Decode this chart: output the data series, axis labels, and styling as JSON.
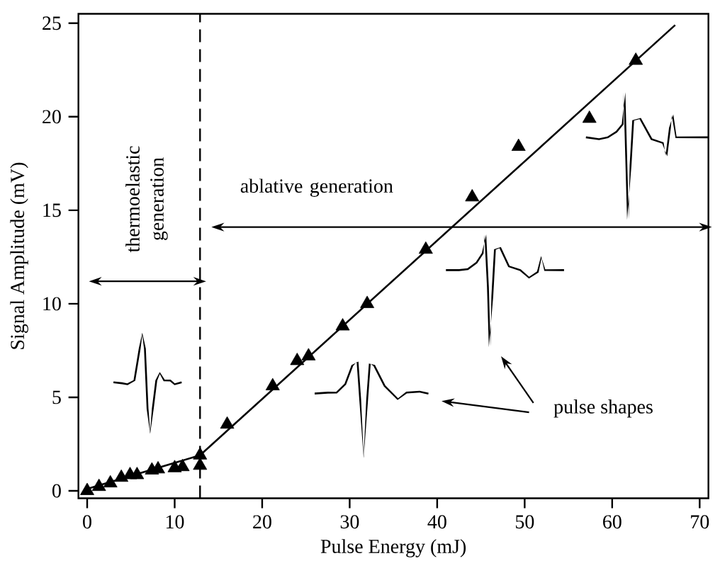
{
  "chart_data": {
    "type": "scatter",
    "xlabel": "Pulse Energy (mJ)",
    "ylabel": "Signal Amplitude (mV)",
    "xlim": [
      -1,
      71
    ],
    "ylim": [
      -0.4,
      25.5
    ],
    "xticks": [
      0,
      10,
      20,
      30,
      40,
      50,
      60,
      70
    ],
    "yticks": [
      0,
      5,
      10,
      15,
      20,
      25
    ],
    "series": [
      {
        "marker": "triangle",
        "color": "#000000",
        "x": [
          0,
          1.35,
          2.65,
          3.9,
          4.9,
          5.7,
          7.4,
          8.1,
          10.0,
          10.9,
          12.9,
          12.9,
          16.0,
          21.2,
          24.0,
          25.3,
          29.2,
          32.0,
          38.7,
          44.0,
          49.3,
          57.4,
          62.7
        ],
        "values": [
          0,
          0.22,
          0.41,
          0.71,
          0.85,
          0.85,
          1.1,
          1.16,
          1.22,
          1.28,
          1.9,
          1.35,
          3.55,
          5.6,
          6.95,
          7.2,
          8.8,
          10.0,
          12.9,
          15.7,
          18.4,
          19.9,
          23.0
        ]
      },
      {
        "type": "line",
        "marker": "none",
        "color": "#000000",
        "x": [
          0,
          12.9,
          67.2
        ],
        "values": [
          0.1,
          1.9,
          24.9
        ]
      }
    ],
    "ref_lines": [
      {
        "axis": "x",
        "value": 12.9,
        "line_style": "dashed",
        "color": "#000000"
      }
    ],
    "annotations": [
      "thermoelastic generation",
      "ablative generation",
      "pulse shapes"
    ]
  }
}
